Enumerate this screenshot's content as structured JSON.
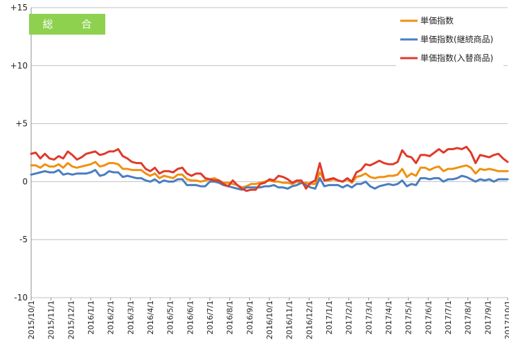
{
  "chart_data": {
    "type": "line",
    "title": "",
    "badge": "総 合",
    "xlabel": "",
    "ylabel": "",
    "ylim": [
      -10,
      15
    ],
    "yticks": [
      "+15",
      "+10",
      "+5",
      "0",
      "-5",
      "-10"
    ],
    "ytick_values": [
      15,
      10,
      5,
      0,
      -5,
      -10
    ],
    "grid": "horizontal",
    "legend_position": "top-right",
    "x_tick_labels": [
      "2015/10/1",
      "2015/11/1",
      "2015/12/1",
      "2016/1/1",
      "2016/2/1",
      "2016/3/1",
      "2016/4/1",
      "2016/5/1",
      "2016/6/1",
      "2016/7/1",
      "2016/8/1",
      "2016/9/1",
      "2016/10/1",
      "2016/11/1",
      "2016/12/1",
      "2017/1/1",
      "2017/2/1",
      "2017/3/1",
      "2017/4/1",
      "2017/5/1",
      "2017/6/1",
      "2017/7/1",
      "2017/8/1",
      "2017/9/1",
      "2017/10/1"
    ],
    "x_count": 105,
    "series": [
      {
        "name": "単価指数",
        "color": "#f0900f",
        "values": [
          1.4,
          1.4,
          1.2,
          1.5,
          1.3,
          1.3,
          1.5,
          1.2,
          1.6,
          1.3,
          1.2,
          1.3,
          1.4,
          1.5,
          1.7,
          1.3,
          1.4,
          1.6,
          1.6,
          1.5,
          1.1,
          1.1,
          1.0,
          1.0,
          1.0,
          0.7,
          0.5,
          0.7,
          0.3,
          0.5,
          0.4,
          0.3,
          0.6,
          0.6,
          0.2,
          0.1,
          0.1,
          0.0,
          0.1,
          0.2,
          0.3,
          0.1,
          -0.1,
          -0.1,
          -0.2,
          -0.3,
          -0.5,
          -0.4,
          -0.2,
          -0.2,
          -0.1,
          0.0,
          0.1,
          0.0,
          0.0,
          -0.1,
          -0.1,
          -0.2,
          0.0,
          -0.1,
          -0.1,
          -0.2,
          -0.2,
          0.8,
          0.1,
          0.1,
          0.2,
          0.1,
          0.0,
          0.2,
          -0.1,
          0.4,
          0.5,
          0.7,
          0.4,
          0.3,
          0.4,
          0.4,
          0.5,
          0.5,
          0.6,
          1.1,
          0.4,
          0.7,
          0.5,
          1.2,
          1.2,
          1.0,
          1.2,
          1.3,
          0.9,
          1.1,
          1.1,
          1.2,
          1.3,
          1.4,
          1.2,
          0.7,
          1.1,
          1.0,
          1.1,
          1.0,
          0.9,
          0.9,
          0.9
        ]
      },
      {
        "name": "単価指数(継続商品)",
        "color": "#4a7dc0",
        "values": [
          0.6,
          0.7,
          0.8,
          0.9,
          0.8,
          0.8,
          1.0,
          0.6,
          0.7,
          0.6,
          0.7,
          0.7,
          0.7,
          0.8,
          1.0,
          0.5,
          0.6,
          0.9,
          0.8,
          0.8,
          0.4,
          0.5,
          0.4,
          0.3,
          0.3,
          0.1,
          0.0,
          0.2,
          -0.1,
          0.1,
          0.0,
          0.0,
          0.2,
          0.2,
          -0.3,
          -0.3,
          -0.3,
          -0.4,
          -0.4,
          0.0,
          0.0,
          -0.1,
          -0.3,
          -0.4,
          -0.5,
          -0.6,
          -0.7,
          -0.5,
          -0.5,
          -0.5,
          -0.5,
          -0.4,
          -0.4,
          -0.3,
          -0.5,
          -0.5,
          -0.6,
          -0.4,
          -0.3,
          -0.1,
          -0.3,
          -0.5,
          -0.6,
          0.3,
          -0.4,
          -0.3,
          -0.3,
          -0.3,
          -0.5,
          -0.3,
          -0.5,
          -0.2,
          -0.2,
          0.0,
          -0.4,
          -0.6,
          -0.4,
          -0.3,
          -0.2,
          -0.3,
          -0.2,
          0.1,
          -0.4,
          -0.2,
          -0.3,
          0.3,
          0.3,
          0.2,
          0.3,
          0.3,
          0.0,
          0.2,
          0.2,
          0.3,
          0.5,
          0.4,
          0.2,
          0.0,
          0.2,
          0.1,
          0.2,
          0.0,
          0.2,
          0.2,
          0.2
        ]
      },
      {
        "name": "単価指数(入替商品)",
        "color": "#e0392b",
        "values": [
          2.4,
          2.5,
          2.0,
          2.4,
          2.0,
          1.9,
          2.2,
          2.0,
          2.6,
          2.3,
          1.9,
          2.1,
          2.4,
          2.5,
          2.6,
          2.3,
          2.4,
          2.6,
          2.6,
          2.8,
          2.2,
          2.0,
          1.7,
          1.6,
          1.6,
          1.1,
          0.9,
          1.2,
          0.7,
          0.9,
          0.9,
          0.8,
          1.1,
          1.2,
          0.7,
          0.5,
          0.7,
          0.7,
          0.3,
          0.2,
          0.1,
          0.1,
          -0.2,
          -0.4,
          0.1,
          -0.3,
          -0.6,
          -0.8,
          -0.7,
          -0.7,
          -0.2,
          -0.1,
          0.2,
          0.1,
          0.5,
          0.4,
          0.2,
          -0.1,
          0.1,
          0.1,
          -0.6,
          -0.1,
          0.1,
          1.6,
          0.1,
          0.2,
          0.3,
          0.1,
          0.0,
          0.3,
          0.0,
          0.8,
          1.0,
          1.5,
          1.4,
          1.6,
          1.8,
          1.6,
          1.5,
          1.5,
          1.7,
          2.7,
          2.2,
          2.1,
          1.6,
          2.3,
          2.3,
          2.2,
          2.5,
          2.8,
          2.5,
          2.8,
          2.8,
          2.9,
          2.8,
          3.0,
          2.5,
          1.6,
          2.3,
          2.2,
          2.1,
          2.3,
          2.4,
          2.0,
          1.7
        ]
      }
    ]
  }
}
